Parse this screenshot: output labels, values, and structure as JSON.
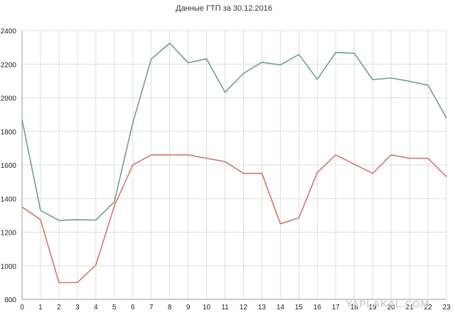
{
  "chart_data": {
    "type": "line",
    "title": "Данные ГТП за 30.12.2016",
    "xlabel": "",
    "ylabel": "",
    "x": [
      0,
      1,
      2,
      3,
      4,
      5,
      6,
      7,
      8,
      9,
      10,
      11,
      12,
      13,
      14,
      15,
      16,
      17,
      18,
      19,
      20,
      21,
      22,
      23
    ],
    "xlim": [
      0,
      23
    ],
    "ylim": [
      800,
      2400
    ],
    "yticks": [
      800,
      1000,
      1200,
      1400,
      1600,
      1800,
      2000,
      2200,
      2400
    ],
    "grid": true,
    "legend": "none",
    "series": [
      {
        "color": "#6f9e98",
        "values": [
          1870,
          1330,
          1270,
          1275,
          1272,
          1380,
          1850,
          2230,
          2325,
          2208,
          2232,
          2033,
          2145,
          2212,
          2195,
          2258,
          2110,
          2270,
          2265,
          2108,
          2118,
          2098,
          2075,
          1880
        ]
      },
      {
        "color": "#d2776a",
        "values": [
          1350,
          1275,
          900,
          900,
          1005,
          1355,
          1600,
          1660,
          1660,
          1660,
          1640,
          1620,
          1550,
          1550,
          1250,
          1285,
          1555,
          1660,
          1605,
          1550,
          1660,
          1640,
          1640,
          1530
        ]
      }
    ]
  },
  "watermark": "YAPLAKAL.COM"
}
